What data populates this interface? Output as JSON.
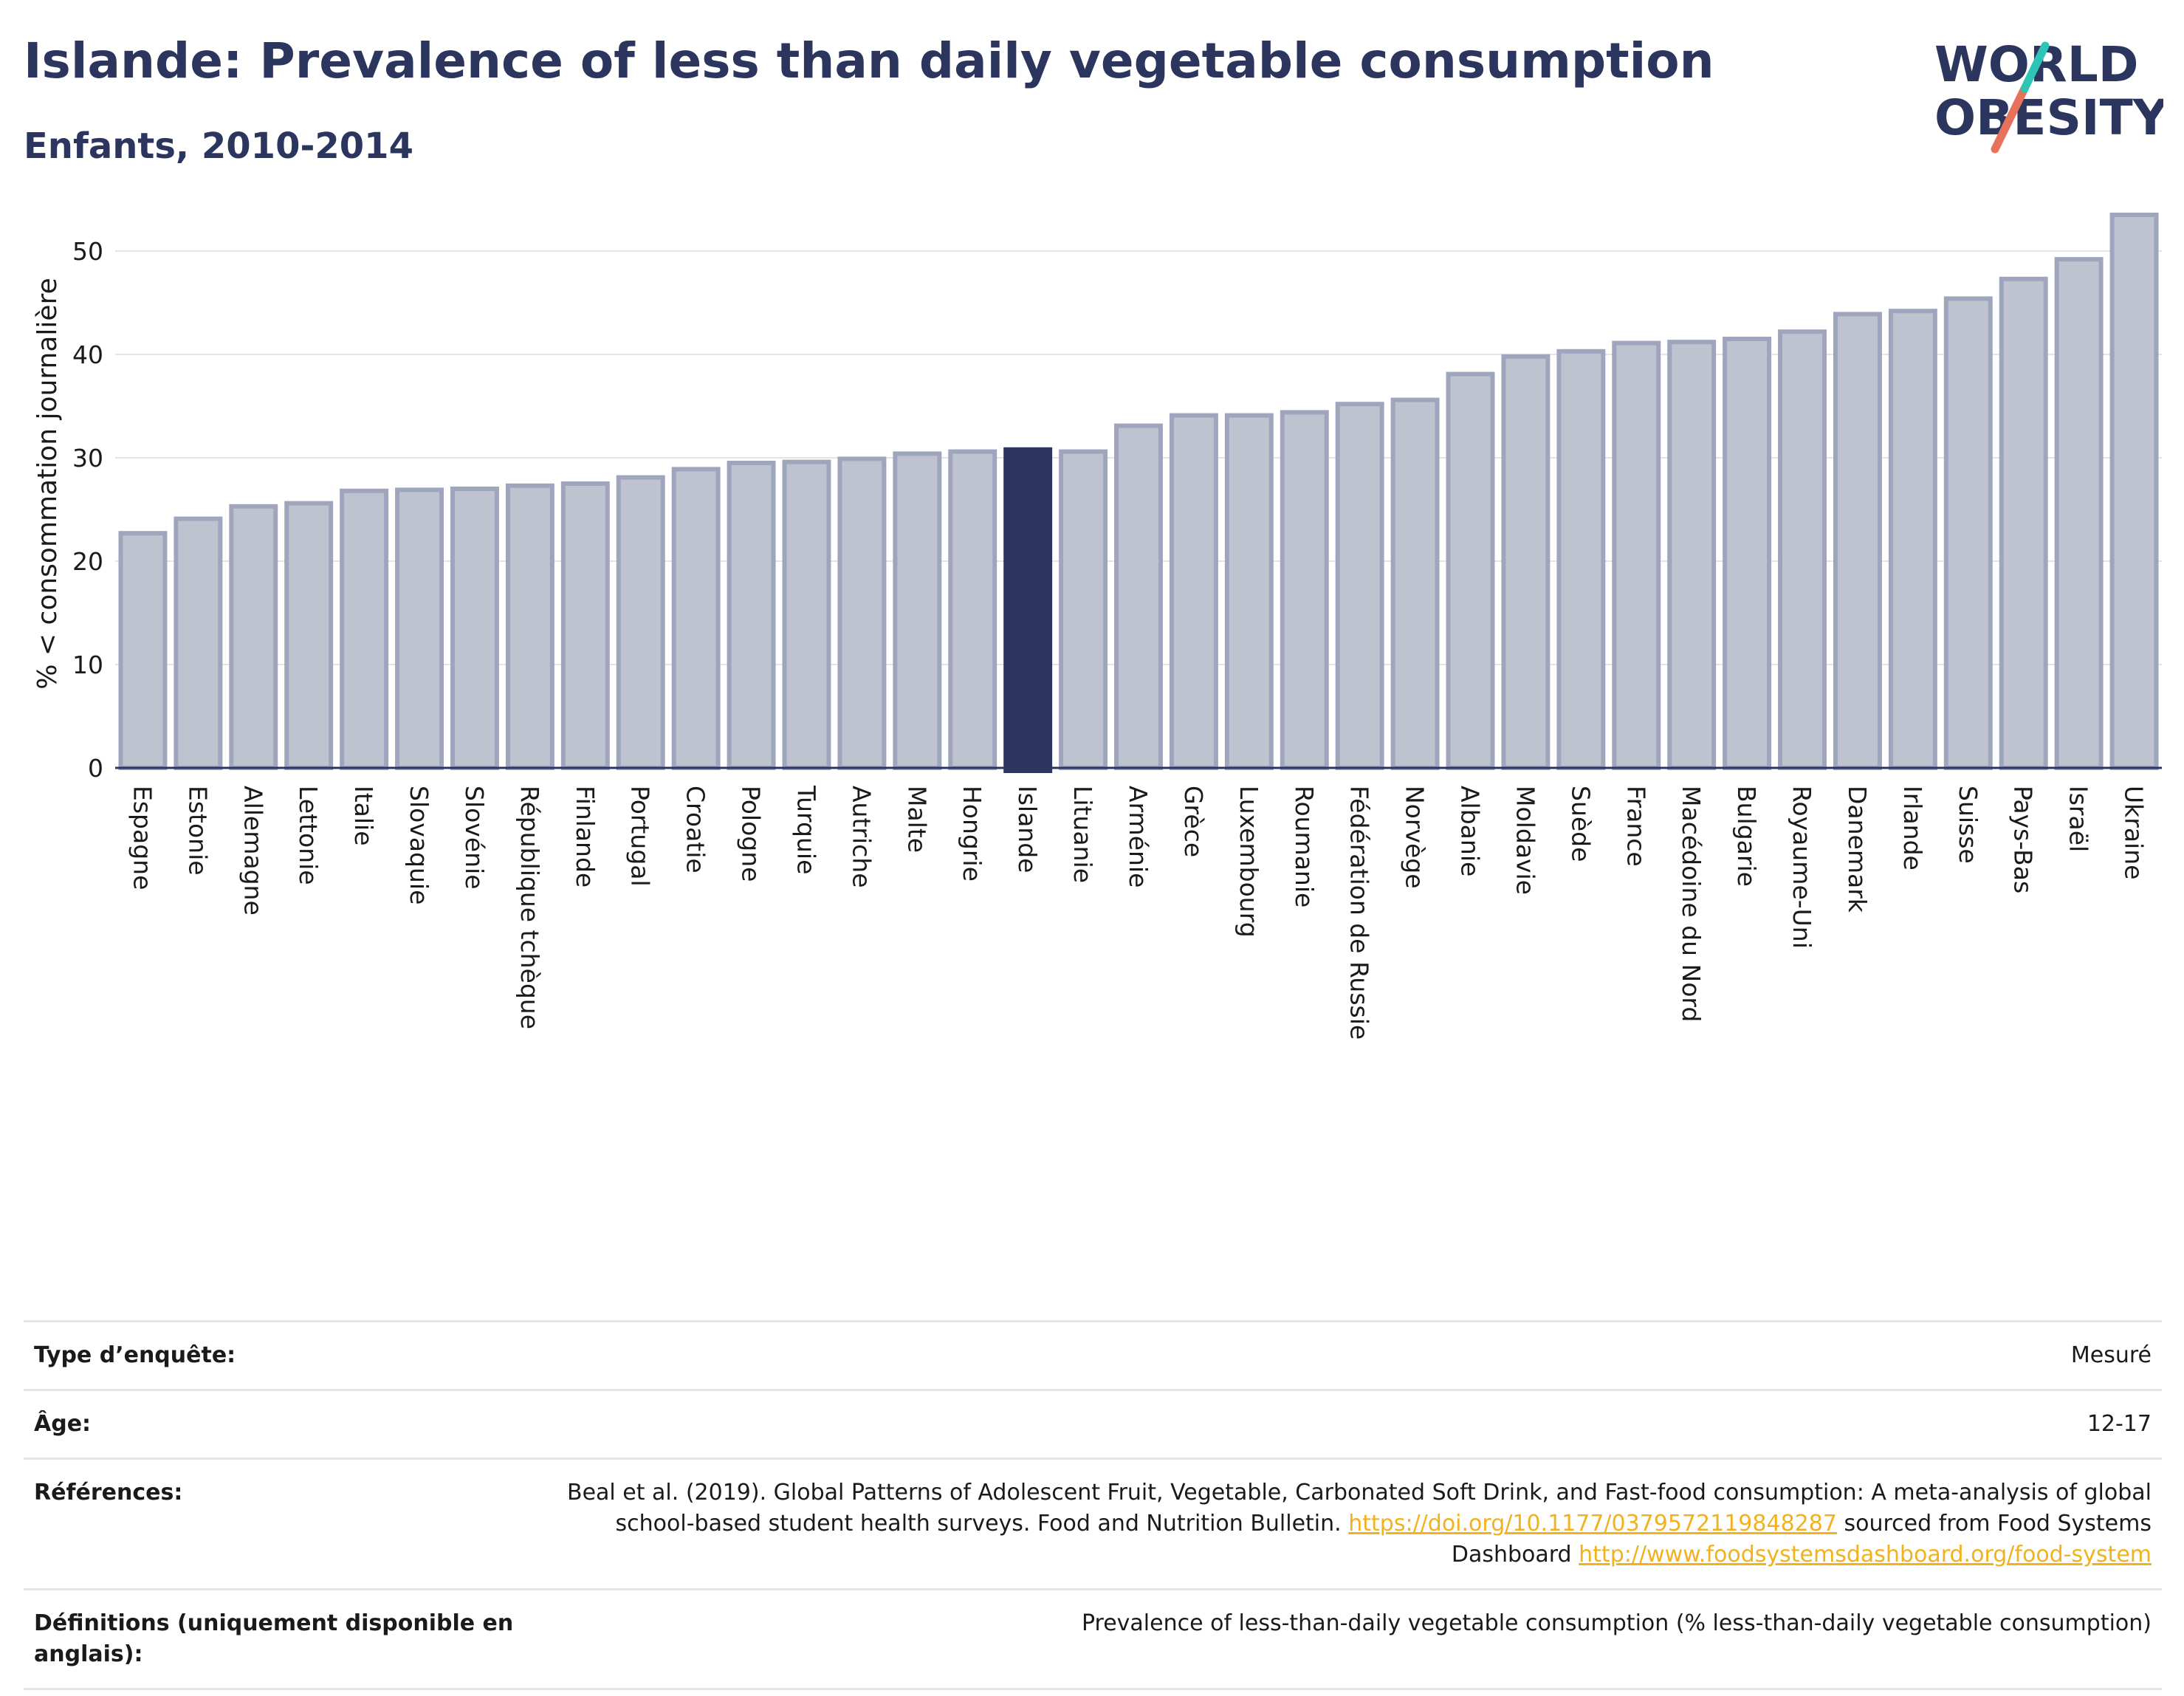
{
  "header": {
    "title": "Islande: Prevalence of less than daily vegetable consumption",
    "subtitle": "Enfants, 2010-2014"
  },
  "logo": {
    "line1": "WORLD",
    "line2": "OBESITY",
    "accent_teal": "#2ec4b6",
    "accent_coral": "#e8715b",
    "color": "#2b355e"
  },
  "chart_data": {
    "type": "bar",
    "ylabel": "% < consommation journalière",
    "ylim": [
      0,
      55
    ],
    "yticks": [
      0,
      10,
      20,
      30,
      40,
      50
    ],
    "grid": true,
    "highlight": "Islande",
    "colors": {
      "bar": "#bfc3d0",
      "bar_edge": "#9fa5bd",
      "highlight": "#2b355e"
    },
    "categories": [
      "Espagne",
      "Estonie",
      "Allemagne",
      "Lettonie",
      "Italie",
      "Slovaquie",
      "Slovénie",
      "République tchèque",
      "Finlande",
      "Portugal",
      "Croatie",
      "Pologne",
      "Turquie",
      "Autriche",
      "Malte",
      "Hongrie",
      "Islande",
      "Lituanie",
      "Arménie",
      "Grèce",
      "Luxembourg",
      "Roumanie",
      "Fédération de Russie",
      "Norvège",
      "Albanie",
      "Moldavie",
      "Suède",
      "France",
      "Macédoine du Nord",
      "Bulgarie",
      "Royaume-Uni",
      "Danemark",
      "Irlande",
      "Suisse",
      "Pays-Bas",
      "Israël",
      "Ukraine"
    ],
    "values": [
      22.7,
      24.1,
      25.3,
      25.6,
      26.8,
      26.9,
      27.0,
      27.3,
      27.5,
      28.1,
      28.9,
      29.5,
      29.6,
      29.9,
      30.4,
      30.6,
      30.8,
      30.6,
      33.1,
      34.1,
      34.1,
      34.4,
      35.2,
      35.6,
      38.1,
      39.8,
      40.3,
      41.1,
      41.2,
      41.5,
      42.2,
      43.9,
      44.2,
      45.4,
      47.3,
      49.2,
      53.5
    ]
  },
  "info": {
    "survey_type": {
      "label": "Type d’enquête:",
      "value": "Mesuré"
    },
    "age": {
      "label": "Âge:",
      "value": "12-17"
    },
    "references": {
      "label": "Références:",
      "text1": "Beal et al. (2019). Global Patterns of Adolescent Fruit, Vegetable, Carbonated Soft Drink, and Fast-food consumption: A meta-analysis of global school-based student health surveys. Food and Nutrition Bulletin.",
      "link1": "https://doi.org/10.1177/0379572119848287",
      "text2": "sourced from Food Systems Dashboard",
      "link2": "http://www.foodsystemsdashboard.org/food-system"
    },
    "definitions": {
      "label": "Définitions (uniquement disponible en anglais):",
      "value": "Prevalence of less-than-daily vegetable consumption (% less-than-daily vegetable consumption)"
    }
  }
}
